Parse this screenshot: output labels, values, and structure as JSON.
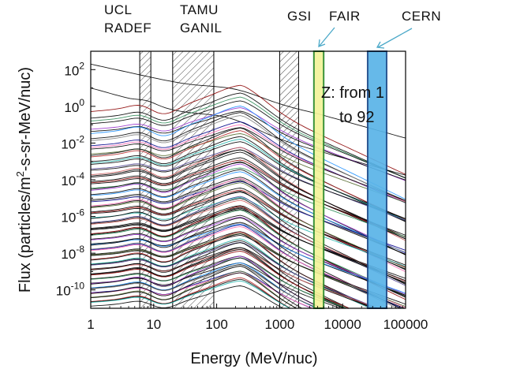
{
  "chart_data": {
    "type": "line",
    "title": "",
    "xlabel": "Energy (MeV/nuc)",
    "ylabel_parts": [
      "Flux (particles/m",
      "2",
      "-s-sr-MeV/nuc)"
    ],
    "xscale": "log",
    "yscale": "log",
    "xlim": [
      1,
      100000
    ],
    "ylim_exp": [
      -11,
      3
    ],
    "x_ticks": [
      {
        "value": 1,
        "label": "1"
      },
      {
        "value": 10,
        "label": "10"
      },
      {
        "value": 100,
        "label": "100"
      },
      {
        "value": 1000,
        "label": "1000"
      },
      {
        "value": 10000,
        "label": "10000"
      },
      {
        "value": 100000,
        "label": "100000"
      }
    ],
    "y_ticks": [
      {
        "exp": 2,
        "base": "10",
        "sup": "2"
      },
      {
        "exp": 0,
        "base": "10",
        "sup": "0"
      },
      {
        "exp": -2,
        "base": "10",
        "sup": "-2"
      },
      {
        "exp": -4,
        "base": "10",
        "sup": "-4"
      },
      {
        "exp": -6,
        "base": "10",
        "sup": "-6"
      },
      {
        "exp": -8,
        "base": "10",
        "sup": "-8"
      },
      {
        "exp": -10,
        "base": "10",
        "sup": "-10"
      }
    ],
    "facility_labels": [
      {
        "name": "ucl",
        "lines": [
          "UCL",
          "RADEF"
        ]
      },
      {
        "name": "tamu",
        "lines": [
          "TAMU",
          "GANIL"
        ]
      },
      {
        "name": "gsi",
        "lines": [
          "GSI"
        ]
      },
      {
        "name": "fair",
        "lines": [
          "FAIR"
        ]
      },
      {
        "name": "cern",
        "lines": [
          "CERN"
        ]
      }
    ],
    "hatched_ranges": [
      {
        "name": "ucl-radef",
        "x": [
          6,
          9
        ]
      },
      {
        "name": "tamu-ganil",
        "x": [
          20,
          90
        ]
      },
      {
        "name": "high-hatch",
        "x": [
          1000,
          2000
        ]
      }
    ],
    "highlight_bands": [
      {
        "name": "fair-band",
        "x": [
          3500,
          5000
        ],
        "color": "#f4f49a",
        "edge": "#2a8a2a"
      },
      {
        "name": "cern-band",
        "x": [
          25000,
          50000
        ],
        "color": "#5ab4e8",
        "edge": "#1a4a8a"
      }
    ],
    "annotation": {
      "line1": "Z: from 1",
      "line2_a": "to ",
      "line2_b": "92"
    },
    "series_spec": {
      "count": 92,
      "description": "galactic cosmic ray flux spectra, one curve per element Z = 1 to 92",
      "peak_energy_mev": 250,
      "top_curve_flux_at_1_mev_exp": 2.3,
      "colors": [
        "#000000",
        "#000000",
        "#8b0000",
        "#000000",
        "#2e8b57",
        "#000000",
        "#9932cc",
        "#000000",
        "#1e90ff",
        "#000000",
        "#808080",
        "#00008b",
        "#ff69b4",
        "#000000",
        "#556b2f",
        "#000000",
        "#b22222",
        "#000000",
        "#20b2aa",
        "#000000",
        "#483d8b",
        "#000000",
        "#cd5c5c",
        "#000000"
      ]
    }
  }
}
